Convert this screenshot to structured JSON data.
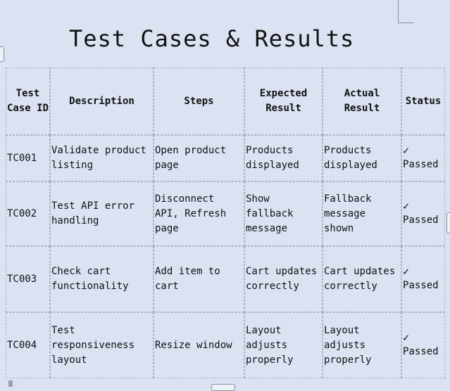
{
  "document": {
    "title": "Test Cases & Results"
  },
  "table": {
    "headers": {
      "test_case_id": "Test Case ID",
      "description": "Description",
      "steps": "Steps",
      "expected_result": "Expected Result",
      "actual_result": "Actual Result",
      "status": "Status"
    },
    "rows": [
      {
        "id": "TC001",
        "description": "Validate product listing",
        "steps": "Open product page",
        "expected": "Products displayed",
        "actual": "Products displayed",
        "status_icon": "✓",
        "status": "Passed"
      },
      {
        "id": "TC002",
        "description": "Test API error handling",
        "steps": "Disconnect API, Refresh page",
        "expected": "Show fallback message",
        "actual": "Fallback message shown",
        "status_icon": "✓",
        "status": "Passed"
      },
      {
        "id": "TC003",
        "description": "Check cart functionality",
        "steps": "Add item to cart",
        "expected": "Cart updates correctly",
        "actual": "Cart updates correctly",
        "status_icon": "✓",
        "status": "Passed"
      },
      {
        "id": "TC004",
        "description": "Test responsiveness layout",
        "steps": "Resize window",
        "expected": "Layout adjusts properly",
        "actual": "Layout adjusts properly",
        "status_icon": "✓",
        "status": "Passed"
      }
    ]
  }
}
